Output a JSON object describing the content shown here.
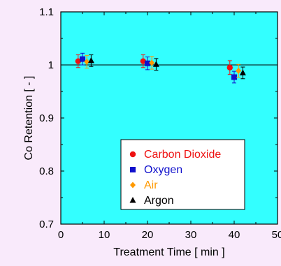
{
  "chart_data": {
    "type": "scatter",
    "xlabel": "Treatment Time [ min ]",
    "ylabel": "Co Retention [ - ]",
    "xlim": [
      0,
      50
    ],
    "ylim": [
      0.7,
      1.1
    ],
    "xticks": [
      0,
      10,
      20,
      30,
      40,
      50
    ],
    "yticks": [
      0.7,
      0.8,
      0.9,
      1.0,
      1.1
    ],
    "xtick_labels": [
      "0",
      "10",
      "20",
      "30",
      "40",
      "50"
    ],
    "ytick_labels": [
      "0.7",
      "0.8",
      "0.9",
      "1",
      "1.1"
    ],
    "reference_line": 1.0,
    "grid": false,
    "legend_position": "bottom-right",
    "plot_background": "#33ffff",
    "series": [
      {
        "name": "Carbon Dioxide",
        "color": "#ee1111",
        "marker": "circle",
        "x": [
          4,
          19,
          39
        ],
        "y": [
          1.007,
          1.007,
          0.995
        ],
        "err": [
          0.012,
          0.012,
          0.013
        ]
      },
      {
        "name": "Oxygen",
        "color": "#1111cc",
        "marker": "square",
        "x": [
          5,
          20,
          40
        ],
        "y": [
          1.011,
          1.003,
          0.977
        ],
        "err": [
          0.011,
          0.012,
          0.011
        ]
      },
      {
        "name": "Air",
        "color": "#ff9900",
        "marker": "diamond",
        "x": [
          6,
          21,
          41
        ],
        "y": [
          1.006,
          1.004,
          0.989
        ],
        "err": [
          0.012,
          0.012,
          0.012
        ]
      },
      {
        "name": "Argon",
        "color": "#000000",
        "marker": "triangle",
        "x": [
          7,
          22,
          42
        ],
        "y": [
          1.008,
          1.001,
          0.985
        ],
        "err": [
          0.011,
          0.011,
          0.011
        ]
      }
    ]
  }
}
